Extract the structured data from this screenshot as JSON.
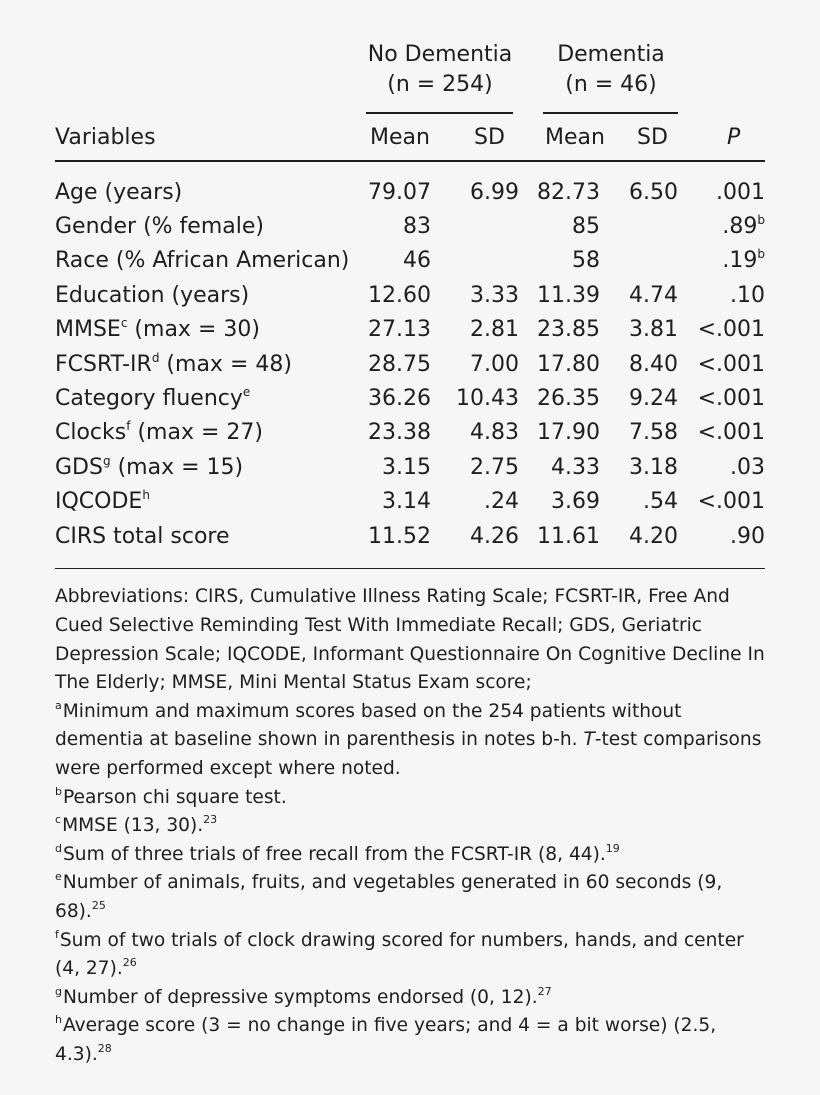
{
  "header": {
    "group_no_dementia": {
      "label": "No Dementia",
      "n": "(n = 254)"
    },
    "group_dementia": {
      "label": "Dementia",
      "n": "(n = 46)"
    },
    "col_variables": "Variables",
    "col_mean_1": "Mean",
    "col_sd_1": "SD",
    "col_mean_2": "Mean",
    "col_sd_2": "SD",
    "col_p": "P"
  },
  "rows": [
    {
      "var": "Age (years)",
      "var_sup": "",
      "var_tail": "",
      "m1": "79.07",
      "sd1": "6.99",
      "m2": "82.73",
      "sd2": "6.50",
      "p": ".001",
      "p_sup": ""
    },
    {
      "var": "Gender (% female)",
      "var_sup": "",
      "var_tail": "",
      "m1": "83",
      "sd1": "",
      "m2": "85",
      "sd2": "",
      "p": ".89",
      "p_sup": "b"
    },
    {
      "var": "Race (% African American)",
      "var_sup": "",
      "var_tail": "",
      "m1": "46",
      "sd1": "",
      "m2": "58",
      "sd2": "",
      "p": ".19",
      "p_sup": "b"
    },
    {
      "var": "Education (years)",
      "var_sup": "",
      "var_tail": "",
      "m1": "12.60",
      "sd1": "3.33",
      "m2": "11.39",
      "sd2": "4.74",
      "p": ".10",
      "p_sup": ""
    },
    {
      "var": "MMSE",
      "var_sup": "c",
      "var_tail": " (max = 30)",
      "m1": "27.13",
      "sd1": "2.81",
      "m2": "23.85",
      "sd2": "3.81",
      "p": "<.001",
      "p_sup": ""
    },
    {
      "var": "FCSRT-IR",
      "var_sup": "d",
      "var_tail": " (max = 48)",
      "m1": "28.75",
      "sd1": "7.00",
      "m2": "17.80",
      "sd2": "8.40",
      "p": "<.001",
      "p_sup": ""
    },
    {
      "var": "Category fluency",
      "var_sup": "e",
      "var_tail": "",
      "m1": "36.26",
      "sd1": "10.43",
      "m2": "26.35",
      "sd2": "9.24",
      "p": "<.001",
      "p_sup": ""
    },
    {
      "var": "Clocks",
      "var_sup": "f",
      "var_tail": " (max = 27)",
      "m1": "23.38",
      "sd1": "4.83",
      "m2": "17.90",
      "sd2": "7.58",
      "p": "<.001",
      "p_sup": ""
    },
    {
      "var": "GDS",
      "var_sup": "g",
      "var_tail": " (max = 15)",
      "m1": "3.15",
      "sd1": "2.75",
      "m2": "4.33",
      "sd2": "3.18",
      "p": ".03",
      "p_sup": ""
    },
    {
      "var": "IQCODE",
      "var_sup": "h",
      "var_tail": "",
      "m1": "3.14",
      "sd1": ".24",
      "m2": "3.69",
      "sd2": ".54",
      "p": "<.001",
      "p_sup": ""
    },
    {
      "var": "CIRS total score",
      "var_sup": "",
      "var_tail": "",
      "m1": "11.52",
      "sd1": "4.26",
      "m2": "11.61",
      "sd2": "4.20",
      "p": ".90",
      "p_sup": ""
    }
  ],
  "notes": {
    "abbreviations": "Abbreviations: CIRS, Cumulative Illness Rating Scale; FCSRT-IR, Free And Cued Selective Reminding Test With Immediate Recall; GDS, Geriatric Depression Scale; IQCODE, Informant Questionnaire On Cognitive Decline In The Elderly; MMSE, Mini Mental Status Exam score;",
    "a": {
      "mark": "a",
      "pre": "Minimum and maximum scores based on the 254 patients without dementia at baseline shown in parenthesis in notes b-h. ",
      "ital": "T",
      "post": "-test comparisons were performed except where noted."
    },
    "b": {
      "mark": "b",
      "text": "Pearson chi square test."
    },
    "c": {
      "mark": "c",
      "text": "MMSE (13, 30).",
      "ref": "23"
    },
    "d": {
      "mark": "d",
      "text": "Sum of three trials of free recall from the FCSRT-IR (8, 44).",
      "ref": "19"
    },
    "e": {
      "mark": "e",
      "text": "Number of animals, fruits, and vegetables generated in 60 seconds (9, 68).",
      "ref": "25"
    },
    "f": {
      "mark": "f",
      "text": "Sum of two trials of clock drawing scored for numbers, hands, and center (4, 27).",
      "ref": "26"
    },
    "g": {
      "mark": "g",
      "text": "Number of depressive symptoms endorsed (0, 12).",
      "ref": "27"
    },
    "h": {
      "mark": "h",
      "text": "Average score (3 = no change in five years; and 4 = a bit worse) (2.5, 4.3).",
      "ref": "28"
    }
  }
}
